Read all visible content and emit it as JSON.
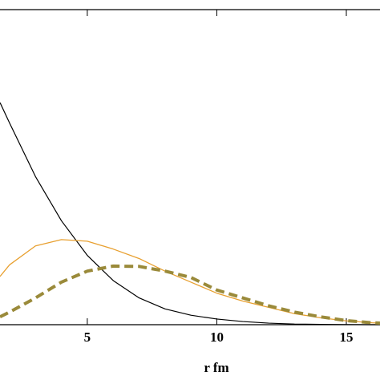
{
  "chart_data": {
    "type": "line",
    "x_label": "r fm",
    "x": [
      1.63,
      2,
      3,
      4,
      5,
      6,
      7,
      8,
      9,
      10,
      11,
      12,
      13,
      14,
      15,
      16,
      16.3
    ],
    "series": [
      {
        "color": "#000000",
        "dash": false,
        "width": 1.2,
        "values": [
          0.705,
          0.64,
          0.47,
          0.33,
          0.22,
          0.14,
          0.085,
          0.05,
          0.03,
          0.018,
          0.01,
          0.005,
          0.002,
          0.001,
          0.0005,
          0,
          0
        ]
      },
      {
        "color": "#e8a030",
        "dash": false,
        "width": 1.3,
        "values": [
          0.153,
          0.19,
          0.25,
          0.27,
          0.265,
          0.24,
          0.21,
          0.17,
          0.135,
          0.1,
          0.075,
          0.055,
          0.035,
          0.022,
          0.012,
          0.006,
          0.005
        ]
      },
      {
        "color": "#9a8a3a",
        "dash": true,
        "width": 4,
        "values": [
          0.025,
          0.04,
          0.085,
          0.135,
          0.17,
          0.186,
          0.185,
          0.17,
          0.15,
          0.11,
          0.085,
          0.06,
          0.04,
          0.025,
          0.013,
          0.006,
          0.005
        ]
      }
    ],
    "xlim": [
      1.63,
      16.3
    ],
    "ylim": [
      0,
      1
    ],
    "xticks": [
      5,
      10,
      15
    ]
  }
}
